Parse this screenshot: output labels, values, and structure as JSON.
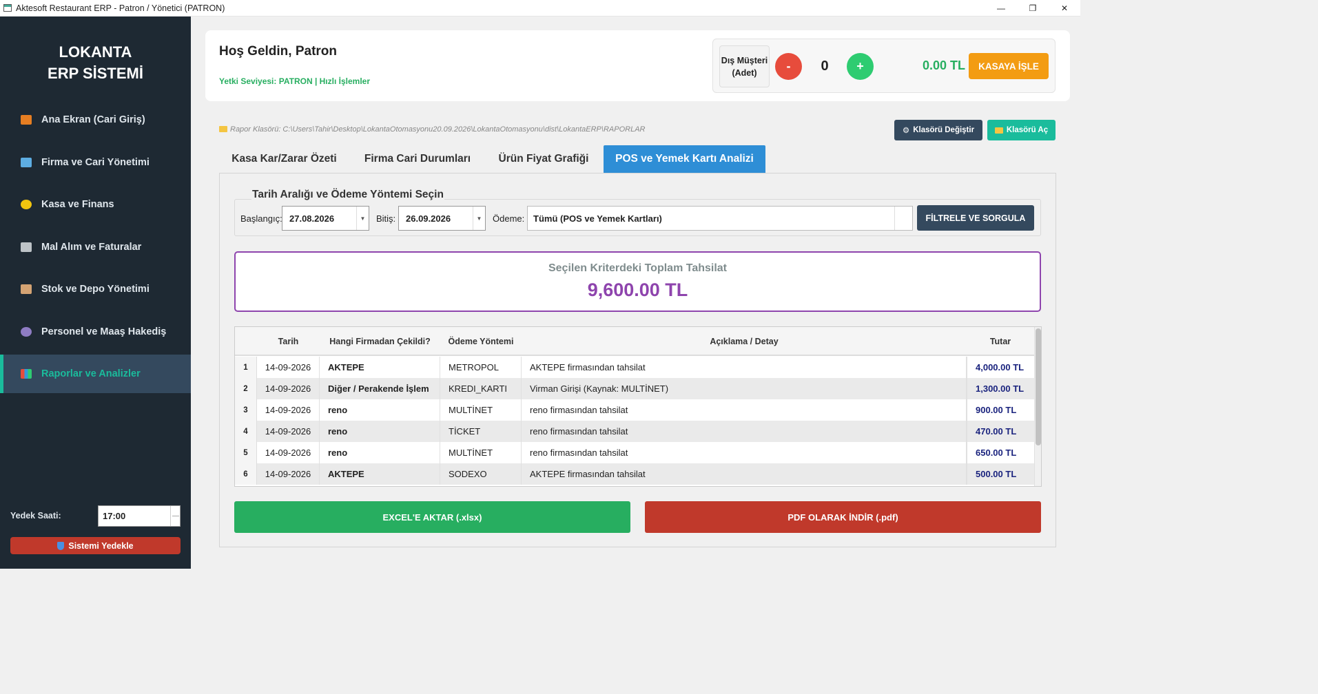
{
  "window": {
    "title": "Aktesoft Restaurant ERP - Patron / Yönetici (PATRON)",
    "controls": [
      "—",
      "❐",
      "✕"
    ]
  },
  "sidebar": {
    "brand_line1": "LOKANTA",
    "brand_line2": "ERP SİSTEMİ",
    "items": [
      {
        "label": "Ana Ekran (Cari Giriş)",
        "icon": "house-icon",
        "color": "#e67e22"
      },
      {
        "label": "Firma ve Cari Yönetimi",
        "icon": "building-icon",
        "color": "#5dade2"
      },
      {
        "label": "Kasa ve Finans",
        "icon": "money-bag-icon",
        "color": "#f1c40f"
      },
      {
        "label": "Mal Alım ve Faturalar",
        "icon": "receipt-icon",
        "color": "#bdc3c7"
      },
      {
        "label": "Stok ve Depo Yönetimi",
        "icon": "package-icon",
        "color": "#d4a373"
      },
      {
        "label": "Personel ve Maaş Hakediş",
        "icon": "people-icon",
        "color": "#8e7cc3"
      },
      {
        "label": "Raporlar ve Analizler",
        "icon": "bar-chart-icon",
        "color": "#e74c3c"
      }
    ],
    "active_index": 6,
    "backup_label": "Yedek Saati:",
    "backup_time": "17:00",
    "backup_button": "Sistemi Yedekle"
  },
  "header": {
    "welcome": "Hoş Geldin, Patron",
    "authority": "Yetki Seviyesi: PATRON | Hızlı İşlemler",
    "external_customer_label_1": "Dış Müşteri",
    "external_customer_label_2": "(Adet)",
    "minus": "-",
    "plus": "+",
    "count": "0",
    "amount": "0.00 TL",
    "kasa_button": "KASAYA İŞLE"
  },
  "folder": {
    "path": "Rapor Klasörü: C:\\Users\\Tahir\\Desktop\\LokantaOtomasyonu20.09.2026\\LokantaOtomasyonu\\dist\\LokantaERP\\RAPORLAR",
    "change_button": "Klasörü Değiştir",
    "open_button": "Klasörü Aç"
  },
  "tabs": [
    {
      "label": "Kasa Kar/Zarar Özeti"
    },
    {
      "label": "Firma Cari Durumları"
    },
    {
      "label": "Ürün Fiyat Grafiği"
    },
    {
      "label": "POS ve Yemek Kartı Analizi"
    }
  ],
  "active_tab": 3,
  "filter": {
    "title": "Tarih Aralığı ve Ödeme Yöntemi Seçin",
    "start_label": "Başlangıç:",
    "start_value": "27.08.2026",
    "end_label": "Bitiş:",
    "end_value": "26.09.2026",
    "payment_label": "Ödeme:",
    "payment_value": "Tümü (POS ve Yemek Kartları)",
    "button": "FİLTRELE VE SORGULA"
  },
  "total": {
    "title": "Seçilen Kriterdeki Toplam Tahsilat",
    "value": "9,600.00 TL"
  },
  "table": {
    "columns": [
      "",
      "Tarih",
      "Hangi Firmadan Çekildi?",
      "Ödeme Yöntemi",
      "Açıklama / Detay",
      "Tutar"
    ],
    "rows": [
      {
        "no": "1",
        "date": "14-09-2026",
        "firm": "AKTEPE",
        "method": "METROPOL",
        "desc": "AKTEPE firmasından tahsilat",
        "amount": "4,000.00 TL"
      },
      {
        "no": "2",
        "date": "14-09-2026",
        "firm": "Diğer / Perakende İşlem",
        "method": "KREDI_KARTI",
        "desc": "Virman Girişi (Kaynak: MULTİNET)",
        "amount": "1,300.00 TL"
      },
      {
        "no": "3",
        "date": "14-09-2026",
        "firm": "reno",
        "method": "MULTİNET",
        "desc": "reno firmasından tahsilat",
        "amount": "900.00 TL"
      },
      {
        "no": "4",
        "date": "14-09-2026",
        "firm": "reno",
        "method": "TİCKET",
        "desc": "reno firmasından tahsilat",
        "amount": "470.00 TL"
      },
      {
        "no": "5",
        "date": "14-09-2026",
        "firm": "reno",
        "method": "MULTİNET",
        "desc": "reno firmasından tahsilat",
        "amount": "650.00 TL"
      },
      {
        "no": "6",
        "date": "14-09-2026",
        "firm": "AKTEPE",
        "method": "SODEXO",
        "desc": "AKTEPE firmasından tahsilat",
        "amount": "500.00 TL"
      }
    ]
  },
  "export": {
    "excel": "EXCEL'E AKTAR (.xlsx)",
    "pdf": "PDF OLARAK İNDİR (.pdf)"
  }
}
